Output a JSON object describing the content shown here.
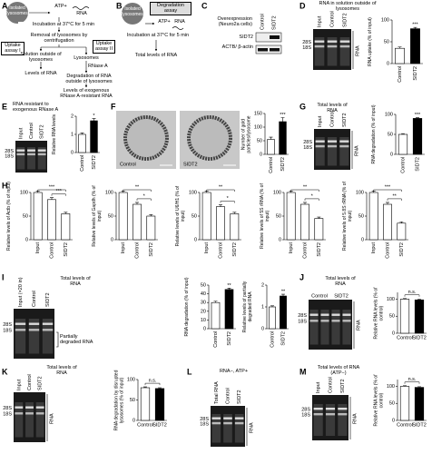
{
  "panels": {
    "A": {
      "label": "A",
      "texts": [
        "Isolated lysosomes",
        "ATP+",
        "RNA",
        "Incubation at 37°C for 5 min",
        "Removal of lysosomes by centrifugation",
        "Uptake assay I",
        "Uptake assay II",
        "Solution outside of lysosomes",
        "Lysosomes",
        "RNase A",
        "Levels of RNA",
        "Degradation of RNA outside of lysosomes",
        "Levels of exogenous RNase A-resistant RNA"
      ]
    },
    "B": {
      "label": "B",
      "texts": [
        "Isolated lysosomes",
        "Degradation assay",
        "ATP+",
        "RNA",
        "Incubation at 37°C for 5 min",
        "Total levels of RNA"
      ]
    },
    "C": {
      "label": "C",
      "texts": [
        "Overexpression (Neuro2a cells)",
        "Control",
        "SIDT2",
        "SIDT2",
        "ACTB/ β-actin"
      ]
    },
    "D": {
      "label": "D",
      "texts": [
        "RNA in solution outside of lysosomes",
        "Input",
        "Control",
        "SIDT2",
        "28S",
        "18S",
        "RNA"
      ]
    },
    "E": {
      "label": "E",
      "texts": [
        "RNA resistant to exogenous RNase A",
        "Input",
        "Control",
        "SIDT2",
        "28S",
        "18S"
      ]
    },
    "F": {
      "label": "F",
      "texts": [
        "Control",
        "SIDT2"
      ]
    },
    "G": {
      "label": "G",
      "texts": [
        "Total levels of RNA",
        "Input",
        "Control",
        "SIDT2",
        "28S",
        "18S",
        "RNA"
      ]
    },
    "H": {
      "label": "H"
    },
    "I": {
      "label": "I",
      "texts": [
        "Input (×20 in)",
        "Control",
        "SIDT2",
        "Total levels of RNA",
        "28S",
        "18S",
        "Partially degraded RNA"
      ]
    },
    "J": {
      "label": "J",
      "texts": [
        "Total levels of RNA",
        "Control",
        "SIDT2",
        "28S",
        "18S",
        "RNA"
      ]
    },
    "K": {
      "label": "K",
      "texts": [
        "Total levels of RNA",
        "Input",
        "Control",
        "SIDT2",
        "28S",
        "18S",
        "RNA"
      ]
    },
    "L": {
      "label": "L",
      "texts": [
        "RNA−, ATP+",
        "Total RNA",
        "Control",
        "SIDT2",
        "28S",
        "18S",
        "RNA"
      ]
    },
    "M": {
      "label": "M",
      "texts": [
        "Total levels of RNA (ATP−)",
        "Input",
        "Control",
        "SIDT2",
        "28S",
        "18S",
        "RNA"
      ]
    }
  },
  "chart_data": [
    {
      "type": "bar",
      "y_label": "RNA uptake (% of input)",
      "categories": [
        "Control",
        "SIDT2"
      ],
      "values": [
        35,
        80
      ],
      "errors": [
        3,
        3
      ],
      "colors": [
        "#ffffff",
        "#000000"
      ],
      "ylim": [
        0,
        100
      ],
      "yticks": [
        0,
        50,
        100
      ],
      "annotations": [
        "***"
      ]
    },
    {
      "type": "bar",
      "y_label": "Relative RNA levels",
      "categories": [
        "Control",
        "SIDT2"
      ],
      "values": [
        1.0,
        1.75
      ],
      "errors": [
        0.08,
        0.12
      ],
      "colors": [
        "#ffffff",
        "#000000"
      ],
      "ylim": [
        0,
        2
      ],
      "yticks": [
        0,
        1,
        2
      ],
      "annotations": [
        "*"
      ]
    },
    {
      "type": "bar",
      "y_label": "Number of gold particles/lysosome",
      "categories": [
        "Control",
        "SIDT2"
      ],
      "values": [
        55,
        120
      ],
      "errors": [
        8,
        15
      ],
      "colors": [
        "#ffffff",
        "#000000"
      ],
      "ylim": [
        0,
        150
      ],
      "yticks": [
        0,
        50,
        100,
        150
      ],
      "annotations": [
        "***"
      ]
    },
    {
      "type": "bar",
      "y_label": "RNA degradation (% of input)",
      "categories": [
        "Control",
        "SIDT2"
      ],
      "values": [
        50,
        90
      ],
      "errors": [
        2,
        2
      ],
      "colors": [
        "#ffffff",
        "#000000"
      ],
      "ylim": [
        0,
        100
      ],
      "yticks": [
        0,
        50,
        100
      ],
      "annotations": [
        "***"
      ]
    },
    {
      "type": "bar",
      "y_label": "Relative levels of Actb (% of input)",
      "categories": [
        "Input",
        "Control",
        "SIDT2"
      ],
      "values": [
        100,
        85,
        55
      ],
      "errors": [
        3,
        4,
        3
      ],
      "colors": [
        "#ffffff",
        "#ffffff",
        "#ffffff"
      ],
      "ylim": [
        0,
        100
      ],
      "yticks": [
        0,
        50,
        100
      ],
      "annotations": [
        "***",
        "***"
      ]
    },
    {
      "type": "bar",
      "y_label": "Relative levels of Gapdh (% of input)",
      "categories": [
        "Input",
        "Control",
        "SIDT2"
      ],
      "values": [
        100,
        75,
        50
      ],
      "errors": [
        3,
        4,
        3
      ],
      "colors": [
        "#ffffff",
        "#ffffff",
        "#ffffff"
      ],
      "ylim": [
        0,
        100
      ],
      "yticks": [
        0,
        50,
        100
      ],
      "annotations": [
        "**",
        "*"
      ]
    },
    {
      "type": "bar",
      "y_label": "Relative levels of U6/H1 (% of input)",
      "categories": [
        "Input",
        "Control",
        "SIDT2"
      ],
      "values": [
        100,
        70,
        55
      ],
      "errors": [
        3,
        4,
        3
      ],
      "colors": [
        "#ffffff",
        "#ffffff",
        "#ffffff"
      ],
      "ylim": [
        0,
        100
      ],
      "yticks": [
        0,
        50,
        100
      ],
      "annotations": [
        "**",
        "*"
      ]
    },
    {
      "type": "bar",
      "y_label": "Relative levels of 5S rRNA (% of input)",
      "categories": [
        "Input",
        "Control",
        "SIDT2"
      ],
      "values": [
        100,
        75,
        45
      ],
      "errors": [
        3,
        4,
        3
      ],
      "colors": [
        "#ffffff",
        "#ffffff",
        "#ffffff"
      ],
      "ylim": [
        0,
        100
      ],
      "yticks": [
        0,
        50,
        100
      ],
      "annotations": [
        "**",
        "*"
      ]
    },
    {
      "type": "bar",
      "y_label": "Relative levels of 5.8S rRNA (% of input)",
      "categories": [
        "Input",
        "Control",
        "SIDT2"
      ],
      "values": [
        100,
        75,
        35
      ],
      "errors": [
        3,
        4,
        3
      ],
      "colors": [
        "#ffffff",
        "#ffffff",
        "#ffffff"
      ],
      "ylim": [
        0,
        100
      ],
      "yticks": [
        0,
        50,
        100
      ],
      "annotations": [
        "***",
        "**"
      ]
    },
    {
      "type": "bar",
      "y_label": "RNA degradation (% of input)",
      "categories": [
        "Control",
        "SIDT2"
      ],
      "values": [
        30,
        45
      ],
      "errors": [
        1.5,
        1.5
      ],
      "colors": [
        "#ffffff",
        "#000000"
      ],
      "ylim": [
        0,
        50
      ],
      "yticks": [
        0,
        10,
        20,
        30,
        40,
        50
      ],
      "annotations": [
        "**"
      ]
    },
    {
      "type": "bar",
      "y_label": "Relative levels of partially degraded RNA",
      "categories": [
        "Control",
        "SIDT2"
      ],
      "values": [
        1.0,
        1.5
      ],
      "errors": [
        0.05,
        0.08
      ],
      "colors": [
        "#ffffff",
        "#000000"
      ],
      "ylim": [
        0,
        2
      ],
      "yticks": [
        0,
        1,
        2
      ],
      "annotations": [
        "**"
      ]
    },
    {
      "type": "bar",
      "y_label": "Relative RNA levels (% of control)",
      "categories": [
        "Control",
        "SIDT2"
      ],
      "values": [
        100,
        98
      ],
      "errors": [
        2,
        2
      ],
      "colors": [
        "#ffffff",
        "#000000"
      ],
      "ylim": [
        0,
        120
      ],
      "yticks": [
        0,
        50,
        100
      ],
      "annotations": [
        "n.s."
      ]
    },
    {
      "type": "bar",
      "y_label": "RNA degradation by disrupted lysosomes (% of input)",
      "categories": [
        "Control",
        "SIDT2"
      ],
      "values": [
        80,
        78
      ],
      "errors": [
        2,
        2
      ],
      "colors": [
        "#ffffff",
        "#000000"
      ],
      "ylim": [
        0,
        100
      ],
      "yticks": [
        0,
        50,
        100
      ],
      "annotations": [
        "n.s."
      ]
    },
    {
      "type": "bar",
      "y_label": "Relative RNA levels (% of control)",
      "categories": [
        "Control",
        "SIDT2"
      ],
      "values": [
        100,
        97
      ],
      "errors": [
        2,
        2
      ],
      "colors": [
        "#ffffff",
        "#000000"
      ],
      "ylim": [
        0,
        120
      ],
      "yticks": [
        0,
        50,
        100
      ],
      "annotations": [
        "n.s."
      ]
    }
  ]
}
